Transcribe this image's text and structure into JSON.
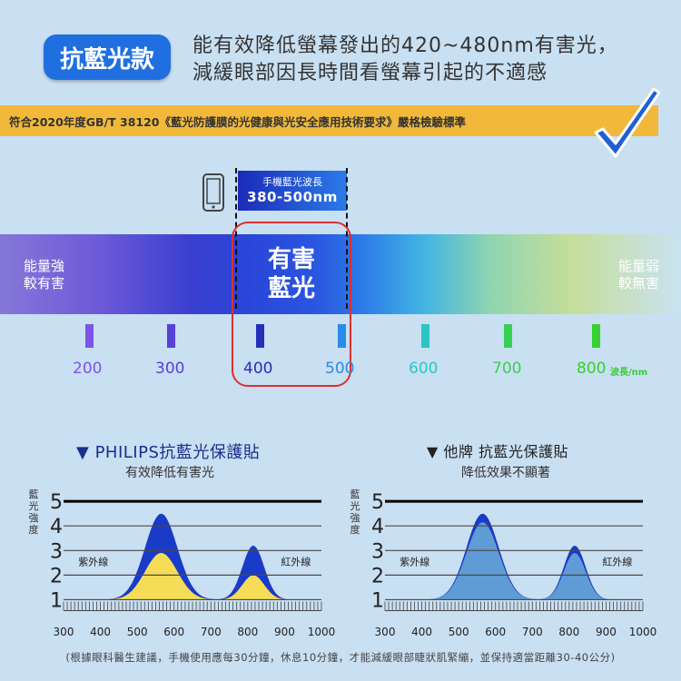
{
  "header": {
    "tag": "抗藍光款",
    "line1": "能有效降低螢幕發出的420~480nm有害光，",
    "line2": "減緩眼部因長時間看螢幕引起的不適感",
    "standard": "符合2020年度GB/T 38120《藍光防護膜的光健康與光安全應用技術要求》嚴格檢驗標準"
  },
  "spectrum": {
    "phone_label_small": "手機藍光波長",
    "phone_label_big": "380-500nm",
    "left_line1": "能量強",
    "left_line2": "較有害",
    "right_line1": "能量弱",
    "right_line2": "較無害",
    "harm_line1": "有害",
    "harm_line2": "藍光",
    "wavelengths": [
      {
        "label": "200",
        "color": "#7a55e8"
      },
      {
        "label": "300",
        "color": "#5840d8"
      },
      {
        "label": "400",
        "color": "#2430b8"
      },
      {
        "label": "500",
        "color": "#2a8ce8"
      },
      {
        "label": "600",
        "color": "#2cc4c4"
      },
      {
        "label": "700",
        "color": "#38d050"
      },
      {
        "label": "800",
        "color": "#36d030"
      }
    ],
    "unit": "波長/nm"
  },
  "charts": {
    "left_title": "▼ PHILIPS抗藍光保護貼",
    "left_subtitle": "有效降低有害光",
    "right_title": "▼ 他牌 抗藍光保護貼",
    "right_subtitle": "降低效果不顯著",
    "ylabel": [
      "藍",
      "光",
      "強",
      "度"
    ],
    "uv_label": "紫外線",
    "ir_label": "紅外線"
  },
  "chart_data": [
    {
      "type": "area",
      "title": "PHILIPS抗藍光保護貼",
      "ylabel": "藍光強度",
      "x": [
        300,
        400,
        500,
        600,
        700,
        800,
        900,
        1000
      ],
      "yticks": [
        1,
        2,
        3,
        4,
        5
      ],
      "ylim": [
        0.5,
        5.3
      ],
      "xlim": [
        300,
        1000
      ],
      "series": [
        {
          "color": "#1a3ac8",
          "peaks": [
            {
              "x": 565,
              "y": 4.5
            },
            {
              "x": 815,
              "y": 3.2
            }
          ]
        },
        {
          "color": "#f5dc56",
          "peaks": [
            {
              "x": 565,
              "y": 2.9
            },
            {
              "x": 815,
              "y": 2.0
            }
          ]
        }
      ],
      "grid": true
    },
    {
      "type": "area",
      "title": "他牌 抗藍光保護貼",
      "ylabel": "藍光強度",
      "x": [
        300,
        400,
        500,
        600,
        700,
        800,
        900,
        1000
      ],
      "yticks": [
        1,
        2,
        3,
        4,
        5
      ],
      "ylim": [
        0.5,
        5.3
      ],
      "xlim": [
        300,
        1000
      ],
      "series": [
        {
          "color": "#1a3ac8",
          "peaks": [
            {
              "x": 565,
              "y": 4.5
            },
            {
              "x": 815,
              "y": 3.2
            }
          ]
        },
        {
          "color": "#5f9bd4",
          "peaks": [
            {
              "x": 565,
              "y": 4.15
            },
            {
              "x": 815,
              "y": 2.9
            }
          ]
        }
      ],
      "grid": true
    }
  ],
  "footer": "(根據眼科醫生建議，手機使用應每30分鐘，休息10分鐘，才能減緩眼部睫狀肌緊繃，並保持適當距離30-40公分)"
}
